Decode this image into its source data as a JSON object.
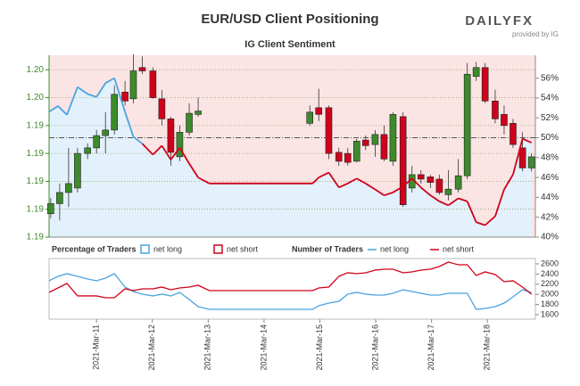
{
  "chart_data": [
    {
      "type": "candlestick",
      "title": "EUR/USD Client Positioning",
      "subtitle": "IG Client Sentiment",
      "logo": "DAILYFX",
      "logo_note": "provided by IG",
      "xlim": [
        10.15,
        18.86
      ],
      "x": [
        10.18,
        10.34,
        10.5,
        10.66,
        10.84,
        11.0,
        11.16,
        11.32,
        11.51,
        11.66,
        11.82,
        12.01,
        12.17,
        12.33,
        12.49,
        12.66,
        12.82,
        14.82,
        14.98,
        15.16,
        15.34,
        15.5,
        15.66,
        15.82,
        15.99,
        16.15,
        16.31,
        16.49,
        16.65,
        16.81,
        16.98,
        17.14,
        17.3,
        17.48,
        17.64,
        17.8,
        17.96,
        18.14,
        18.3,
        18.46,
        18.63,
        18.79
      ],
      "open": [
        1.1896,
        1.1905,
        1.1915,
        1.1919,
        1.195,
        1.1955,
        1.1966,
        1.1971,
        1.2005,
        1.1999,
        1.2027,
        1.2024,
        1.1999,
        1.1981,
        1.1947,
        1.1969,
        1.1985,
        1.1977,
        1.1991,
        1.1991,
        1.1951,
        1.195,
        1.1943,
        1.1962,
        1.1958,
        1.1967,
        1.1943,
        1.1983,
        1.1919,
        1.1931,
        1.1929,
        1.1927,
        1.1913,
        1.1918,
        1.193,
        1.2019,
        1.2027,
        1.1997,
        1.1985,
        1.1977,
        1.1955,
        1.1937
      ],
      "high": [
        1.191,
        1.1923,
        1.1955,
        1.1955,
        1.1959,
        1.1971,
        1.1987,
        1.2011,
        1.2015,
        1.2039,
        1.2037,
        1.2027,
        1.2007,
        1.1983,
        1.1975,
        1.1995,
        1.2,
        1.1993,
        1.2008,
        1.1993,
        1.1955,
        1.1955,
        1.1963,
        1.1966,
        1.1971,
        1.1975,
        1.1987,
        1.1987,
        1.1939,
        1.1935,
        1.1931,
        1.1931,
        1.1935,
        1.1945,
        1.2031,
        1.2032,
        1.2031,
        1.2007,
        1.1993,
        1.1981,
        1.1969,
        1.195
      ],
      "low": [
        1.1892,
        1.189,
        1.1902,
        1.1915,
        1.1945,
        1.195,
        1.195,
        1.1967,
        1.1993,
        1.1995,
        1.2021,
        1.1999,
        1.1975,
        1.1939,
        1.1943,
        1.1966,
        1.1983,
        1.1975,
        1.1979,
        1.1945,
        1.1939,
        1.1939,
        1.1942,
        1.1953,
        1.1947,
        1.1943,
        1.1939,
        1.1902,
        1.1915,
        1.1923,
        1.1919,
        1.1913,
        1.1908,
        1.1915,
        1.1927,
        1.2015,
        1.1995,
        1.1977,
        1.1967,
        1.1955,
        1.1934,
        1.1934
      ],
      "close": [
        1.1905,
        1.1915,
        1.1923,
        1.195,
        1.1955,
        1.1966,
        1.1971,
        1.2003,
        1.1997,
        1.2024,
        1.2024,
        1.2,
        1.1981,
        1.1951,
        1.1969,
        1.1986,
        1.1988,
        1.1987,
        1.1985,
        1.195,
        1.1943,
        1.1942,
        1.1961,
        1.1957,
        1.1967,
        1.1945,
        1.1985,
        1.1904,
        1.1931,
        1.1927,
        1.1924,
        1.1915,
        1.1918,
        1.193,
        1.2021,
        1.2027,
        1.1997,
        1.1981,
        1.1975,
        1.1958,
        1.1937,
        1.1947
      ],
      "up_color": "#3d8b2c",
      "down_color": "#d0021b",
      "ylim": [
        1.1875,
        1.2038
      ],
      "yticks": [
        {
          "value": 1.2025,
          "label": "1.20"
        },
        {
          "value": 1.2,
          "label": "1.20"
        },
        {
          "value": 1.1975,
          "label": "1.19"
        },
        {
          "value": 1.195,
          "label": "1.19"
        },
        {
          "value": 1.1925,
          "label": "1.19"
        },
        {
          "value": 1.19,
          "label": "1.19"
        },
        {
          "value": 1.1875,
          "label": "1.19"
        }
      ],
      "y2lim": [
        40,
        58.3
      ],
      "y2ticks": [
        {
          "value": 56,
          "label": "56%"
        },
        {
          "value": 54,
          "label": "54%"
        },
        {
          "value": 52,
          "label": "52%"
        },
        {
          "value": 50,
          "label": "50%"
        },
        {
          "value": 48,
          "label": "48%"
        },
        {
          "value": 46,
          "label": "46%"
        },
        {
          "value": 44,
          "label": "44%"
        },
        {
          "value": 42,
          "label": "42%"
        },
        {
          "value": 40,
          "label": "40%"
        }
      ],
      "reference_line": 50,
      "sentiment": {
        "axis": "y2",
        "x": [
          10.15,
          10.31,
          10.47,
          10.66,
          10.84,
          11.0,
          11.16,
          11.32,
          11.51,
          11.66,
          11.82,
          12.01,
          12.17,
          12.33,
          12.49,
          12.66,
          12.82,
          13.02,
          14.87,
          14.98,
          15.16,
          15.34,
          15.5,
          15.66,
          15.82,
          15.99,
          16.15,
          16.31,
          16.49,
          16.65,
          16.81,
          16.98,
          17.14,
          17.3,
          17.48,
          17.64,
          17.8,
          17.96,
          18.14,
          18.3,
          18.46,
          18.63,
          18.79
        ],
        "values": [
          52.6,
          53.2,
          52.3,
          55.1,
          54.4,
          54.1,
          55.5,
          56.0,
          52.6,
          50.1,
          49.4,
          48.3,
          49.2,
          47.8,
          49.0,
          47.4,
          46.0,
          45.4,
          45.4,
          46.0,
          46.5,
          45.0,
          45.4,
          45.9,
          45.4,
          44.8,
          44.2,
          44.5,
          45.1,
          45.9,
          45.0,
          44.2,
          43.6,
          43.2,
          43.9,
          43.6,
          41.5,
          41.2,
          42.1,
          44.8,
          46.3,
          49.9,
          49.5
        ]
      },
      "legend_title": "Percentage of Traders",
      "legend": [
        {
          "name": "net long",
          "color": "#4aa3df"
        },
        {
          "name": "net short",
          "color": "#d0021b"
        }
      ]
    },
    {
      "type": "line",
      "legend_title": "Number of Traders",
      "xlim": [
        10.15,
        18.86
      ],
      "xticks": [
        {
          "value": 11,
          "label": "2021-Mar-11"
        },
        {
          "value": 12,
          "label": "2021-Mar-12"
        },
        {
          "value": 13,
          "label": "2021-Mar-13"
        },
        {
          "value": 14,
          "label": "2021-Mar-14"
        },
        {
          "value": 15,
          "label": "2021-Mar-15"
        },
        {
          "value": 16,
          "label": "2021-Mar-16"
        },
        {
          "value": 17,
          "label": "2021-Mar-17"
        },
        {
          "value": 18,
          "label": "2021-Mar-18"
        }
      ],
      "x": [
        10.15,
        10.31,
        10.47,
        10.66,
        10.84,
        11.0,
        11.16,
        11.32,
        11.51,
        11.66,
        11.82,
        12.01,
        12.17,
        12.33,
        12.49,
        12.66,
        12.82,
        13.02,
        14.87,
        14.98,
        15.16,
        15.34,
        15.5,
        15.66,
        15.82,
        15.99,
        16.15,
        16.31,
        16.49,
        16.65,
        16.81,
        16.98,
        17.14,
        17.3,
        17.48,
        17.64,
        17.8,
        17.96,
        18.14,
        18.3,
        18.46,
        18.63,
        18.79
      ],
      "y2lim": [
        1512,
        2705
      ],
      "y2ticks": [
        2600,
        2400,
        2200,
        2000,
        1800,
        1600
      ],
      "series": [
        {
          "name": "net long",
          "color": "#4aa3df",
          "axis": "y2",
          "values": [
            2267,
            2354,
            2407,
            2354,
            2302,
            2267,
            2319,
            2407,
            2144,
            2056,
            2004,
            1969,
            2004,
            1969,
            2039,
            1898,
            1758,
            1705,
            1705,
            1776,
            1828,
            1863,
            2004,
            2039,
            2004,
            1986,
            1986,
            2021,
            2091,
            2056,
            2021,
            1986,
            1986,
            2021,
            2021,
            2021,
            1705,
            1723,
            1758,
            1828,
            1951,
            2091,
            2039
          ]
        },
        {
          "name": "net short",
          "color": "#d0021b",
          "axis": "y2",
          "values": [
            2039,
            2126,
            2214,
            1969,
            1969,
            1969,
            1933,
            1933,
            2109,
            2074,
            2109,
            2109,
            2144,
            2091,
            2126,
            2144,
            2179,
            2074,
            2074,
            2126,
            2144,
            2354,
            2425,
            2407,
            2425,
            2477,
            2495,
            2495,
            2425,
            2442,
            2477,
            2495,
            2547,
            2635,
            2582,
            2582,
            2372,
            2442,
            2389,
            2249,
            2267,
            2144,
            2004
          ]
        }
      ]
    }
  ]
}
